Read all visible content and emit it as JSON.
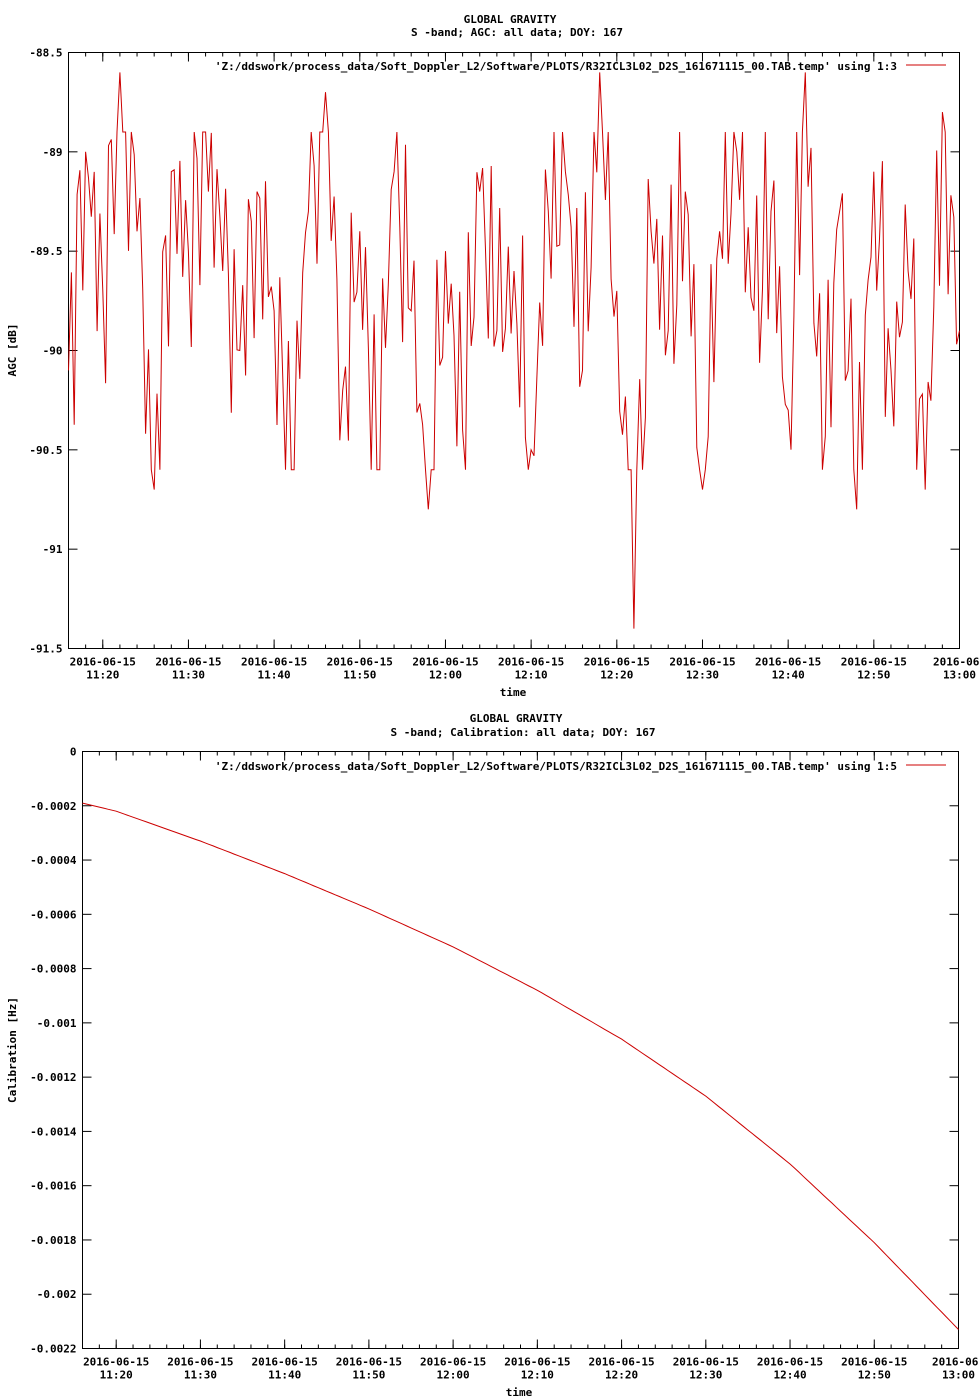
{
  "chart_data": [
    {
      "type": "line",
      "title": "GLOBAL GRAVITY",
      "subtitle": "S -band; AGC: all data; DOY: 167",
      "xlabel": "time",
      "ylabel": "AGC [dB]",
      "ylim": [
        -91.5,
        -88.5
      ],
      "yticks": [
        "-88.5",
        "-89",
        "-89.5",
        "-90",
        "-90.5",
        "-91",
        "-91.5"
      ],
      "xlim": [
        "2016-06-15 11:16",
        "2016-06-15 13:00"
      ],
      "xticks": [
        {
          "date": "2016-06-15",
          "time": "11:20"
        },
        {
          "date": "2016-06-15",
          "time": "11:30"
        },
        {
          "date": "2016-06-15",
          "time": "11:40"
        },
        {
          "date": "2016-06-15",
          "time": "11:50"
        },
        {
          "date": "2016-06-15",
          "time": "12:00"
        },
        {
          "date": "2016-06-15",
          "time": "12:10"
        },
        {
          "date": "2016-06-15",
          "time": "12:20"
        },
        {
          "date": "2016-06-15",
          "time": "12:30"
        },
        {
          "date": "2016-06-15",
          "time": "12:40"
        },
        {
          "date": "2016-06-15",
          "time": "12:50"
        },
        {
          "date": "2016-06-",
          "time": "13:00"
        }
      ],
      "legend": "'Z:/ddswork/process_data/Soft_Doppler_L2/Software/PLOTS/R32ICL3L02_D2S_161671115_00.TAB.temp' using 1:3",
      "legend_position": "top-right",
      "color": "#cc0000",
      "series": [
        {
          "x": [
            "11:16",
            "11:18",
            "11:20",
            "11:22",
            "11:24",
            "11:26",
            "11:28",
            "11:30",
            "11:32",
            "11:34",
            "11:36",
            "11:38",
            "11:40",
            "11:42",
            "11:44",
            "11:46",
            "11:48",
            "11:50",
            "11:52",
            "11:54",
            "11:56",
            "11:58",
            "12:00",
            "12:02",
            "12:04",
            "12:06",
            "12:08",
            "12:10",
            "12:12",
            "12:14",
            "12:16",
            "12:18",
            "12:20",
            "12:22",
            "12:24",
            "12:26",
            "12:28",
            "12:30",
            "12:32",
            "12:34",
            "12:36",
            "12:38",
            "12:40",
            "12:42",
            "12:44",
            "12:46",
            "12:48",
            "12:50",
            "12:52",
            "12:54",
            "12:56",
            "12:58",
            "13:00"
          ],
          "values": [
            -90.1,
            -89.0,
            -89.7,
            -88.6,
            -89.4,
            -90.7,
            -89.1,
            -89.5,
            -88.9,
            -89.6,
            -90.0,
            -89.2,
            -89.8,
            -90.6,
            -89.3,
            -88.7,
            -90.2,
            -89.4,
            -90.6,
            -89.1,
            -89.8,
            -90.8,
            -89.5,
            -90.4,
            -89.2,
            -89.9,
            -89.6,
            -90.5,
            -89.3,
            -89.1,
            -90.1,
            -88.6,
            -89.7,
            -91.4,
            -89.4,
            -89.9,
            -89.2,
            -90.7,
            -89.4,
            -89.0,
            -89.8,
            -89.3,
            -90.3,
            -88.6,
            -90.6,
            -89.3,
            -90.8,
            -89.1,
            -90.1,
            -89.6,
            -90.7,
            -88.8,
            -89.9
          ]
        }
      ]
    },
    {
      "type": "line",
      "title": "GLOBAL GRAVITY",
      "subtitle": "S -band; Calibration: all data; DOY: 167",
      "xlabel": "time",
      "ylabel": "Calibration [Hz]",
      "ylim": [
        -0.0022,
        0
      ],
      "yticks": [
        "0",
        "-0.0002",
        "-0.0004",
        "-0.0006",
        "-0.0008",
        "-0.001",
        "-0.0012",
        "-0.0014",
        "-0.0016",
        "-0.0018",
        "-0.002",
        "-0.0022"
      ],
      "xlim": [
        "2016-06-15 11:16",
        "2016-06-15 13:00"
      ],
      "xticks": [
        {
          "date": "2016-06-15",
          "time": "11:20"
        },
        {
          "date": "2016-06-15",
          "time": "11:30"
        },
        {
          "date": "2016-06-15",
          "time": "11:40"
        },
        {
          "date": "2016-06-15",
          "time": "11:50"
        },
        {
          "date": "2016-06-15",
          "time": "12:00"
        },
        {
          "date": "2016-06-15",
          "time": "12:10"
        },
        {
          "date": "2016-06-15",
          "time": "12:20"
        },
        {
          "date": "2016-06-15",
          "time": "12:30"
        },
        {
          "date": "2016-06-15",
          "time": "12:40"
        },
        {
          "date": "2016-06-15",
          "time": "12:50"
        },
        {
          "date": "2016-06-",
          "time": "13:00"
        }
      ],
      "legend": "'Z:/ddswork/process_data/Soft_Doppler_L2/Software/PLOTS/R32ICL3L02_D2S_161671115_00.TAB.temp' using 1:5",
      "legend_position": "top-right",
      "color": "#cc0000",
      "series": [
        {
          "x": [
            "11:16",
            "11:20",
            "11:30",
            "11:40",
            "11:50",
            "12:00",
            "12:10",
            "12:20",
            "12:30",
            "12:40",
            "12:50",
            "13:00"
          ],
          "values": [
            -0.00019,
            -0.00022,
            -0.00033,
            -0.00045,
            -0.00058,
            -0.00072,
            -0.00088,
            -0.00106,
            -0.00127,
            -0.00152,
            -0.00181,
            -0.00213
          ]
        }
      ]
    }
  ]
}
